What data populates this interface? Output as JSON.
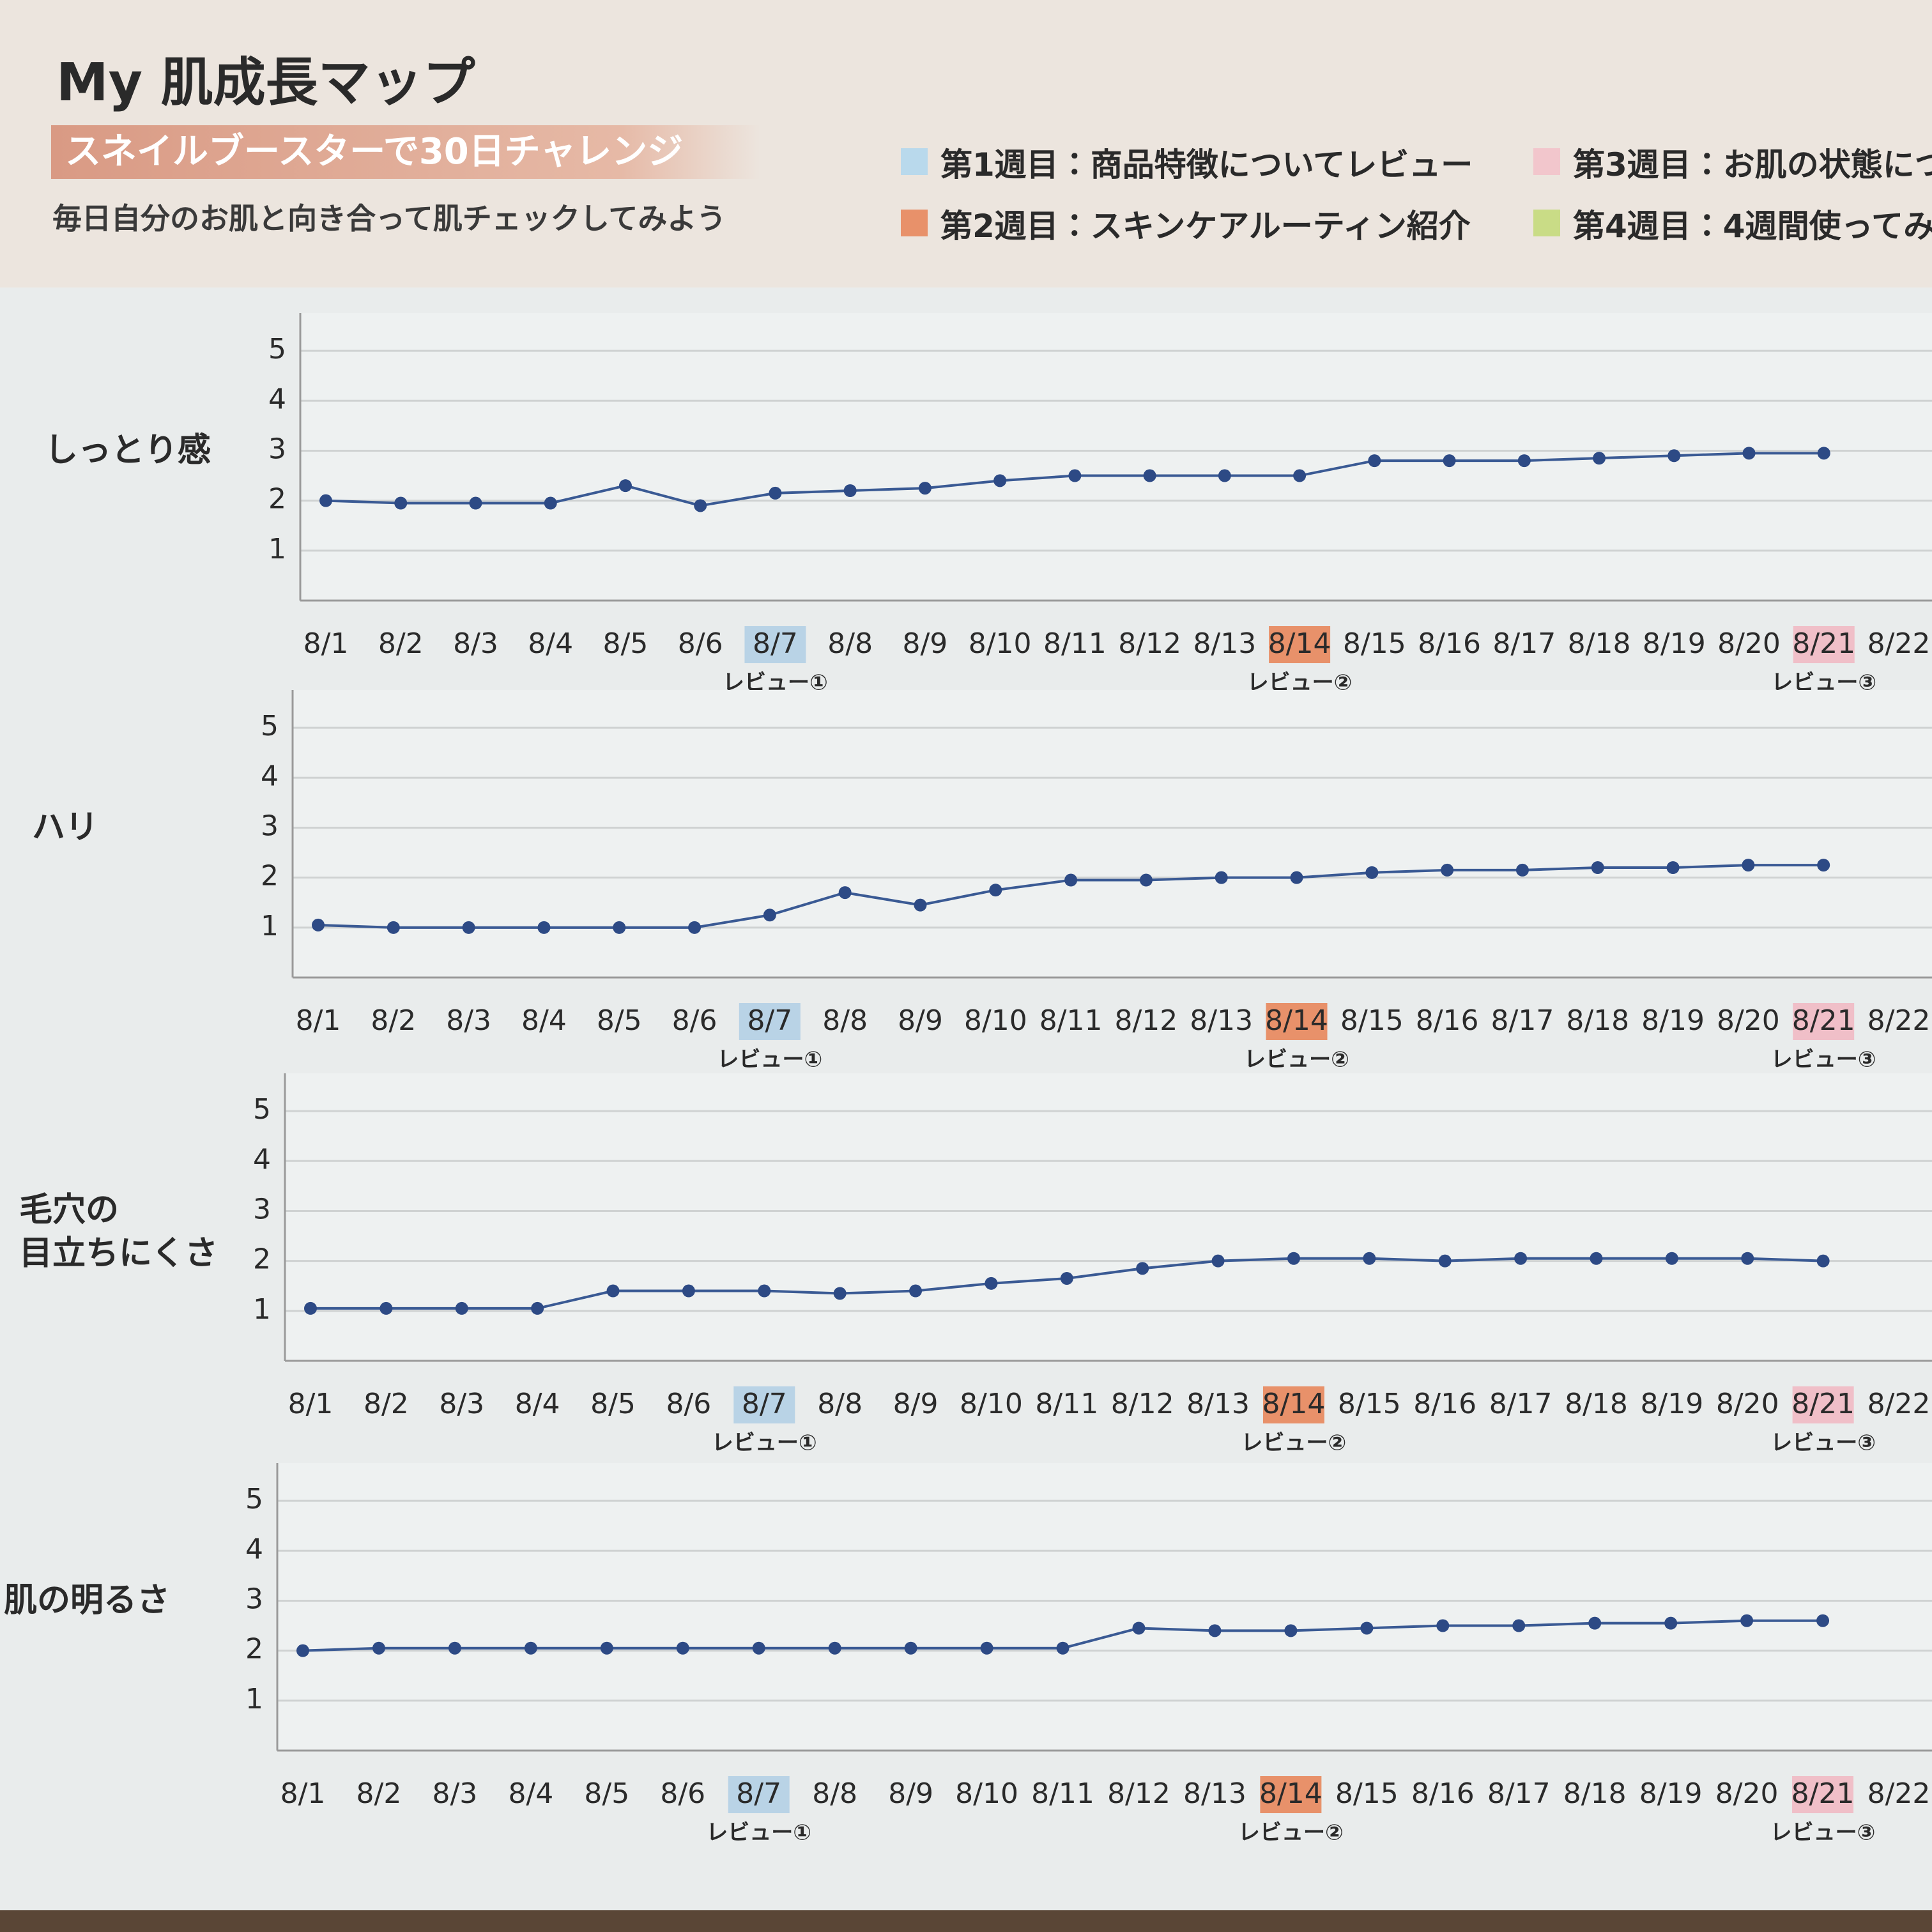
{
  "header": {
    "title": "My 肌成長マップ",
    "subtitle": "スネイルブースターで30日チャレンジ",
    "description": "毎日自分のお肌と向き合って肌チェックしてみよう"
  },
  "legend": {
    "items": [
      {
        "label": "第1週目：商品特徴についてレビュー",
        "color": "#b9d9ec"
      },
      {
        "label": "第2週目：スキンケアルーティン紹介",
        "color": "#e8916a"
      },
      {
        "label": "第3週目：お肌の状態につ",
        "color": "#f2c6cc"
      },
      {
        "label": "第4週目：4週間使ってみ",
        "color": "#c9dc86"
      }
    ]
  },
  "chart_data": [
    {
      "type": "line",
      "title": "しっとり感",
      "color": "#3a5a94",
      "categories": [
        "8/1",
        "8/2",
        "8/3",
        "8/4",
        "8/5",
        "8/6",
        "8/7",
        "8/8",
        "8/9",
        "8/10",
        "8/11",
        "8/12",
        "8/13",
        "8/14",
        "8/15",
        "8/16",
        "8/17",
        "8/18",
        "8/19",
        "8/20",
        "8/21",
        "8/22"
      ],
      "values": [
        2.0,
        1.95,
        1.95,
        1.95,
        2.3,
        1.9,
        2.15,
        2.2,
        2.25,
        2.4,
        2.5,
        2.5,
        2.5,
        2.5,
        2.8,
        2.8,
        2.8,
        2.85,
        2.9,
        2.95,
        2.95,
        null
      ],
      "ylim": [
        0,
        5.5
      ],
      "yticks": [
        1,
        2,
        3,
        4,
        5
      ],
      "grid": true,
      "highlights": [
        {
          "category": "8/7",
          "color": "#b9d3e6",
          "note": "レビュー①"
        },
        {
          "category": "8/14",
          "color": "#e8916a",
          "note": "レビュー②"
        },
        {
          "category": "8/21",
          "color": "#f0bfc8",
          "note": "レビュー③"
        }
      ]
    },
    {
      "type": "line",
      "title": "ハリ",
      "color": "#3a5a94",
      "categories": [
        "8/1",
        "8/2",
        "8/3",
        "8/4",
        "8/5",
        "8/6",
        "8/7",
        "8/8",
        "8/9",
        "8/10",
        "8/11",
        "8/12",
        "8/13",
        "8/14",
        "8/15",
        "8/16",
        "8/17",
        "8/18",
        "8/19",
        "8/20",
        "8/21",
        "8/22"
      ],
      "values": [
        1.05,
        1.0,
        1.0,
        1.0,
        1.0,
        1.0,
        1.25,
        1.7,
        1.45,
        1.75,
        1.95,
        1.95,
        2.0,
        2.0,
        2.1,
        2.15,
        2.15,
        2.2,
        2.2,
        2.25,
        2.25,
        null
      ],
      "ylim": [
        0,
        5.5
      ],
      "yticks": [
        1,
        2,
        3,
        4,
        5
      ],
      "grid": true,
      "highlights": [
        {
          "category": "8/7",
          "color": "#b9d3e6",
          "note": "レビュー①"
        },
        {
          "category": "8/14",
          "color": "#e8916a",
          "note": "レビュー②"
        },
        {
          "category": "8/21",
          "color": "#f0bfc8",
          "note": "レビュー③"
        }
      ]
    },
    {
      "type": "line",
      "title": "毛穴の\n目立ちにくさ",
      "color": "#3a5a94",
      "categories": [
        "8/1",
        "8/2",
        "8/3",
        "8/4",
        "8/5",
        "8/6",
        "8/7",
        "8/8",
        "8/9",
        "8/10",
        "8/11",
        "8/12",
        "8/13",
        "8/14",
        "8/15",
        "8/16",
        "8/17",
        "8/18",
        "8/19",
        "8/20",
        "8/21",
        "8/22"
      ],
      "values": [
        1.05,
        1.05,
        1.05,
        1.05,
        1.4,
        1.4,
        1.4,
        1.35,
        1.4,
        1.55,
        1.65,
        1.85,
        2.0,
        2.05,
        2.05,
        2.0,
        2.05,
        2.05,
        2.05,
        2.05,
        2.0,
        null
      ],
      "ylim": [
        0,
        5.5
      ],
      "yticks": [
        1,
        2,
        3,
        4,
        5
      ],
      "grid": true,
      "highlights": [
        {
          "category": "8/7",
          "color": "#b9d3e6",
          "note": "レビュー①"
        },
        {
          "category": "8/14",
          "color": "#e8916a",
          "note": "レビュー②"
        },
        {
          "category": "8/21",
          "color": "#f0bfc8",
          "note": "レビュー③"
        }
      ]
    },
    {
      "type": "line",
      "title": "肌の明るさ",
      "color": "#3a5a94",
      "categories": [
        "8/1",
        "8/2",
        "8/3",
        "8/4",
        "8/5",
        "8/6",
        "8/7",
        "8/8",
        "8/9",
        "8/10",
        "8/11",
        "8/12",
        "8/13",
        "8/14",
        "8/15",
        "8/16",
        "8/17",
        "8/18",
        "8/19",
        "8/20",
        "8/21",
        "8/22"
      ],
      "values": [
        2.0,
        2.05,
        2.05,
        2.05,
        2.05,
        2.05,
        2.05,
        2.05,
        2.05,
        2.05,
        2.05,
        2.45,
        2.4,
        2.4,
        2.45,
        2.5,
        2.5,
        2.55,
        2.55,
        2.6,
        2.6,
        null
      ],
      "ylim": [
        0,
        5.5
      ],
      "yticks": [
        1,
        2,
        3,
        4,
        5
      ],
      "grid": true,
      "highlights": [
        {
          "category": "8/7",
          "color": "#b9d3e6",
          "note": "レビュー①"
        },
        {
          "category": "8/14",
          "color": "#e8916a",
          "note": "レビュー②"
        },
        {
          "category": "8/21",
          "color": "#f0bfc8",
          "note": "レビュー③"
        }
      ]
    }
  ]
}
